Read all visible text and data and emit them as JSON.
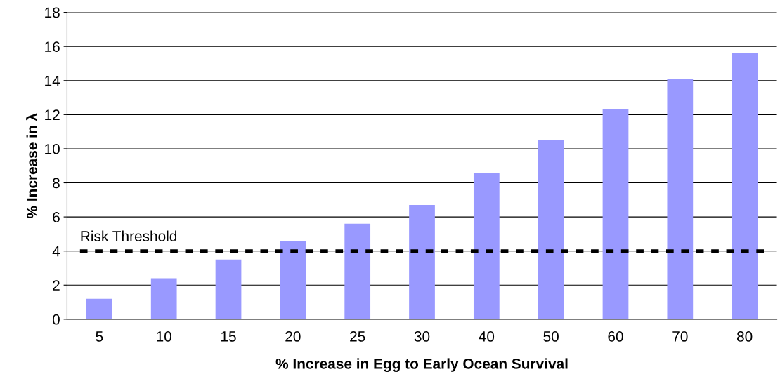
{
  "chart_data": {
    "type": "bar",
    "xlabel": "% Increase in Egg to Early Ocean Survival",
    "ylabel": "% Increase in λ",
    "categories": [
      "5",
      "10",
      "15",
      "20",
      "25",
      "30",
      "40",
      "50",
      "60",
      "70",
      "80"
    ],
    "values": [
      1.2,
      2.4,
      3.5,
      4.6,
      5.6,
      6.7,
      8.6,
      10.5,
      12.3,
      14.1,
      15.6
    ],
    "color": "#9999ff",
    "ylim": [
      0,
      18
    ],
    "yticks": [
      0,
      2,
      4,
      6,
      8,
      10,
      12,
      14,
      16,
      18
    ],
    "grid": "y",
    "ref_lines": [
      {
        "axis": "y",
        "value": 4,
        "label": "Risk Threshold",
        "color": "#000000",
        "line_style": "dashed"
      }
    ]
  }
}
